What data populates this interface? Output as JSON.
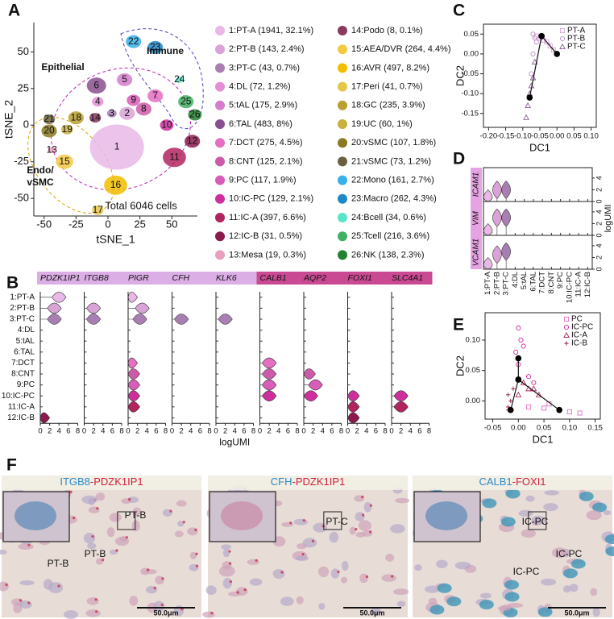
{
  "panel_labels": [
    "A",
    "B",
    "C",
    "D",
    "E",
    "F"
  ],
  "chart_data": [
    {
      "type": "scatter",
      "xlabel": "tSNE_1",
      "ylabel": "tSNE_2",
      "xlim": [
        -58,
        70
      ],
      "ylim": [
        -62,
        70
      ],
      "xticks": [
        -50,
        -25,
        0,
        25,
        50
      ],
      "yticks": [
        -50,
        -25,
        0,
        25,
        50
      ],
      "annotations": [
        {
          "text": "Epithelial",
          "color": "#e020d0"
        },
        {
          "text": "Immune",
          "color": "#2b3fe0"
        },
        {
          "text": "Endo/",
          "color": "#f07a00"
        },
        {
          "text": "vSMC",
          "color": "#f07a00"
        },
        {
          "text": "Total 6046 cells",
          "color": "#111111"
        }
      ],
      "series": [
        {
          "name": "1:PT-A (1941, 32.1%)",
          "label": "1",
          "color": "#e9b8e6",
          "x": 7,
          "y": -15
        },
        {
          "name": "2:PT-B (143, 2.4%)",
          "label": "2",
          "color": "#d9a3d6",
          "x": 15,
          "y": 8
        },
        {
          "name": "3:PT-C (43, 0.7%)",
          "label": "3",
          "color": "#a97fb3",
          "x": 3,
          "y": 8
        },
        {
          "name": "4:DL (72, 1.2%)",
          "label": "4",
          "color": "#e48ed6",
          "x": -8,
          "y": 16
        },
        {
          "name": "5:tAL (175, 2.9%)",
          "label": "5",
          "color": "#d57ccd",
          "x": 13,
          "y": 31
        },
        {
          "name": "6:TAL (483, 8%)",
          "label": "6",
          "color": "#8a4f8f",
          "x": -9,
          "y": 27
        },
        {
          "name": "7:DCT (275, 4.5%)",
          "label": "7",
          "color": "#e66fc2",
          "x": 37,
          "y": 20
        },
        {
          "name": "8:CNT (125, 2.1%)",
          "label": "8",
          "color": "#cc5aa8",
          "x": 28,
          "y": 11
        },
        {
          "name": "9:PC (117, 1.9%)",
          "label": "9",
          "color": "#d95cb8",
          "x": 20,
          "y": 17
        },
        {
          "name": "10:IC-PC (129, 2.1%)",
          "label": "10",
          "color": "#cf2f9c",
          "x": 46,
          "y": 0
        },
        {
          "name": "11:IC-A (397, 6.6%)",
          "label": "11",
          "color": "#b3245f",
          "x": 52,
          "y": -22
        },
        {
          "name": "12:IC-B (31, 0.5%)",
          "label": "12",
          "color": "#8c1a4c",
          "x": 66,
          "y": -11
        },
        {
          "name": "13:Mesa (19, 0.3%)",
          "label": "13",
          "color": "#e99fbd",
          "x": -44,
          "y": -17
        },
        {
          "name": "14:Podo (8, 0.1%)",
          "label": "14",
          "color": "#8a3a5c",
          "x": -10,
          "y": 5
        },
        {
          "name": "15:AEA/DVR (264, 4.4%)",
          "label": "15",
          "color": "#f5c842",
          "x": -34,
          "y": -25
        },
        {
          "name": "16:AVR (497, 8.2%)",
          "label": "16",
          "color": "#f2bd00",
          "x": 6,
          "y": -41
        },
        {
          "name": "17:Peri (41, 0.7%)",
          "label": "17",
          "color": "#e6c64a",
          "x": -8,
          "y": -58
        },
        {
          "name": "18:GC (235, 3.9%)",
          "label": "18",
          "color": "#b89f2f",
          "x": -25,
          "y": 5
        },
        {
          "name": "19:UC (60, 1%)",
          "label": "19",
          "color": "#c9b13f",
          "x": -32,
          "y": -3
        },
        {
          "name": "20:vSMC (107, 1.8%)",
          "label": "20",
          "color": "#8a7a22",
          "x": -46,
          "y": -4
        },
        {
          "name": "21:vSMC (73, 1.2%)",
          "label": "21",
          "color": "#6a6040",
          "x": -46,
          "y": 4
        },
        {
          "name": "22:Mono (161, 2.7%)",
          "label": "22",
          "color": "#38b0e8",
          "x": 20,
          "y": 57
        },
        {
          "name": "23:Macro (262, 4.3%)",
          "label": "23",
          "color": "#1e88c8",
          "x": 37,
          "y": 53
        },
        {
          "name": "24:Bcell (34, 0.6%)",
          "label": "24",
          "color": "#59e6c8",
          "x": 56,
          "y": 31
        },
        {
          "name": "25:Tcell (216, 3.6%)",
          "label": "25",
          "color": "#42b062",
          "x": 61,
          "y": 16
        },
        {
          "name": "26:NK (138, 2.3%)",
          "label": "26",
          "color": "#23812f",
          "x": 68,
          "y": 7
        }
      ]
    },
    {
      "type": "violin",
      "xlabel": "logUMI",
      "categories": [
        "1:PT-A",
        "2:PT-B",
        "3:PT-C",
        "4:DL",
        "5:tAL",
        "6:TAL",
        "7:DCT",
        "8:CNT",
        "9:PC",
        "10:IC-PC",
        "11:IC-A",
        "12:IC-B"
      ],
      "xlim": [
        0,
        8
      ],
      "xticks": [
        0,
        2,
        4,
        6,
        8
      ],
      "series": [
        {
          "name": "PDZK1IP1",
          "color": "#dcaee6",
          "values": [
            4,
            3,
            3,
            0,
            0,
            0,
            0,
            0,
            0,
            0,
            0,
            0.5
          ]
        },
        {
          "name": "ITGB8",
          "color": "#dcaee6",
          "values": [
            0,
            2,
            2,
            0,
            0,
            0,
            0,
            0,
            0,
            0,
            0,
            0
          ]
        },
        {
          "name": "PIGR",
          "color": "#dcaee6",
          "values": [
            0.5,
            3,
            2.5,
            0,
            0,
            0,
            0.5,
            1,
            1,
            1,
            1,
            0
          ]
        },
        {
          "name": "CFH",
          "color": "#dcaee6",
          "values": [
            0,
            0,
            2,
            0,
            0,
            0,
            0,
            0,
            0,
            0,
            0,
            0
          ]
        },
        {
          "name": "KLK6",
          "color": "#dcaee6",
          "values": [
            0,
            0,
            2,
            0,
            0,
            0,
            0,
            0,
            0,
            0,
            0,
            0
          ]
        },
        {
          "name": "CALB1",
          "color": "#c94a93",
          "values": [
            0,
            0,
            0,
            0,
            0,
            0,
            2,
            2,
            2,
            2,
            0,
            0
          ]
        },
        {
          "name": "AQP2",
          "color": "#c94a93",
          "values": [
            0,
            0,
            0,
            0,
            0,
            0,
            0,
            1,
            2.5,
            1.5,
            0,
            0
          ]
        },
        {
          "name": "FOXI1",
          "color": "#c94a93",
          "values": [
            0,
            0,
            0,
            0,
            0,
            0,
            0,
            0,
            0,
            1,
            1,
            1
          ]
        },
        {
          "name": "SLC4A1",
          "color": "#c94a93",
          "values": [
            0,
            0,
            0,
            0,
            0,
            0,
            0,
            0,
            0,
            2,
            2,
            0
          ]
        }
      ]
    },
    {
      "type": "scatter",
      "xlabel": "DC1",
      "ylabel": "DC2",
      "xlim": [
        -0.215,
        0.115
      ],
      "ylim": [
        -0.185,
        0.075
      ],
      "xticks": [
        {
          "value": -0.2,
          "label": "-0.20"
        },
        -0.15,
        {
          "value": -0.1,
          "label": "-0.10"
        },
        -0.05,
        {
          "value": 0,
          "label": "0.00"
        },
        0.05,
        {
          "value": 0.1,
          "label": "0.10"
        }
      ],
      "yticks": [
        0.05,
        {
          "value": 0,
          "label": "0.00"
        },
        -0.05,
        {
          "value": -0.1,
          "label": "-0.10"
        },
        -0.15
      ],
      "legend": "upper right",
      "series": [
        {
          "name": "PT-A",
          "marker": "square",
          "color": "#d9a3d6",
          "x": [
            -0.06,
            -0.05,
            -0.04,
            -0.03,
            -0.02,
            -0.01
          ],
          "y": [
            0.045,
            0.04,
            0.035,
            0.03,
            0.02,
            0.01
          ]
        },
        {
          "name": "PT-B",
          "marker": "circle",
          "color": "#b98cc4",
          "x": [
            -0.07,
            -0.065,
            -0.06,
            -0.07,
            -0.075
          ],
          "y": [
            0.05,
            0.04,
            0.03,
            0.0,
            -0.05
          ]
        },
        {
          "name": "PT-C",
          "marker": "triangle",
          "color": "#8a5a94",
          "x": [
            -0.065,
            -0.07,
            -0.075,
            -0.08,
            -0.085,
            -0.09
          ],
          "y": [
            -0.02,
            -0.06,
            -0.08,
            -0.1,
            -0.13,
            -0.16
          ]
        }
      ],
      "trajectories": [
        {
          "x": [
            -0.045,
            0
          ],
          "y": [
            0.045,
            0
          ]
        },
        {
          "x": [
            -0.045,
            -0.08
          ],
          "y": [
            0.045,
            -0.11
          ]
        }
      ]
    },
    {
      "type": "violin",
      "orientation": "vertical",
      "ylabel": "logUMI",
      "categories": [
        "1:PT-A",
        "2:PT-B",
        "3:PT-C",
        "4:DL",
        "5:tAL",
        "6:TAL",
        "7:DCT",
        "8:CNT",
        "9:PC",
        "10:IC-PC",
        "11:IC-A",
        "12:IC-B"
      ],
      "ylim": [
        0,
        5.5
      ],
      "yticks": [
        0,
        2,
        4
      ],
      "series": [
        {
          "name": "ICAM1",
          "color": "#e6a3e3",
          "values": [
            0.5,
            2,
            2,
            0,
            0,
            0,
            0,
            0,
            0,
            0,
            0,
            0
          ]
        },
        {
          "name": "VIM",
          "color": "#e6a3e3",
          "values": [
            0.5,
            3,
            3,
            0,
            0,
            0,
            0,
            0,
            0,
            0,
            0,
            0
          ]
        },
        {
          "name": "VCAM1",
          "color": "#e6a3e3",
          "values": [
            0.5,
            2.5,
            3,
            0,
            0,
            0,
            0,
            0,
            0,
            0,
            0,
            0
          ]
        }
      ]
    },
    {
      "type": "scatter",
      "xlabel": "DC1",
      "ylabel": "DC2",
      "xlim": [
        -0.065,
        0.16
      ],
      "ylim": [
        -0.03,
        0.145
      ],
      "xticks": [
        -0.05,
        {
          "value": 0,
          "label": "0.00"
        },
        0.05,
        {
          "value": 0.1,
          "label": "0.10"
        },
        0.15
      ],
      "yticks": [
        {
          "value": 0,
          "label": "0.00"
        },
        0.05,
        {
          "value": 0.1,
          "label": "0.10"
        }
      ],
      "legend": "upper right",
      "series": [
        {
          "name": "PC",
          "marker": "square",
          "color": "#e36fc2",
          "x": [
            0.02,
            0.05,
            0.06,
            0.08,
            0.1,
            0.12
          ],
          "y": [
            -0.01,
            -0.012,
            -0.005,
            -0.015,
            -0.018,
            -0.02
          ]
        },
        {
          "name": "IC-PC",
          "marker": "circle",
          "color": "#d0279e",
          "x": [
            0,
            0.005,
            -0.005,
            0.01,
            0,
            0.02,
            0.03
          ],
          "y": [
            0.12,
            0.1,
            0.08,
            0.09,
            0.06,
            0.04,
            0.03
          ]
        },
        {
          "name": "IC-A",
          "marker": "triangle",
          "color": "#b3245f",
          "x": [
            0.01,
            0.02,
            0.04,
            0,
            0.03
          ],
          "y": [
            0.03,
            0.02,
            0.01,
            0.01,
            0.02
          ]
        },
        {
          "name": "IC-B",
          "marker": "plus",
          "color": "#8c1a4c",
          "x": [
            -0.02,
            -0.015,
            -0.02,
            -0.01,
            -0.02
          ],
          "y": [
            -0.01,
            0,
            -0.015,
            0.02,
            0.01
          ]
        }
      ],
      "trajectories": [
        {
          "x": [
            0,
            0,
            -0.015
          ],
          "y": [
            0.07,
            0.035,
            -0.015
          ]
        },
        {
          "x": [
            0,
            0.08
          ],
          "y": [
            0.035,
            -0.015
          ]
        }
      ]
    }
  ],
  "micrographs": [
    {
      "title": [
        {
          "text": "ITGB8",
          "color": "#2a8ac8"
        },
        {
          "text": "-PDZK1IP1",
          "color": "#d0203a"
        }
      ],
      "labels": [
        "PT-B",
        "PT-B",
        "PT-B"
      ],
      "scale_bar": "50.0μm"
    },
    {
      "title": [
        {
          "text": "CFH",
          "color": "#2a8ac8"
        },
        {
          "text": "-PDZK1IP1",
          "color": "#d0203a"
        }
      ],
      "labels": [
        "PT-C"
      ],
      "scale_bar": "50.0μm"
    },
    {
      "title": [
        {
          "text": "CALB1",
          "color": "#2a8ac8"
        },
        {
          "text": "-FOXI1",
          "color": "#d0203a"
        }
      ],
      "labels": [
        "IC-PC",
        "IC-PC",
        "IC-PC"
      ],
      "scale_bar": "50.0μm"
    }
  ]
}
